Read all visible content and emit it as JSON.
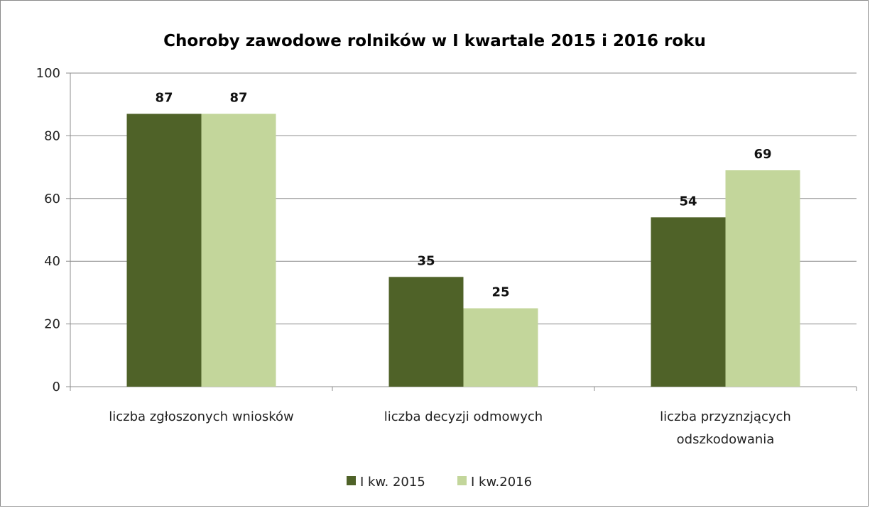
{
  "chart_data": {
    "type": "bar",
    "title": "Choroby zawodowe rolników  w I kwartale 2015 i 2016 roku",
    "xlabel": "",
    "ylabel": "",
    "ylim": [
      0,
      100
    ],
    "yticks": [
      0,
      20,
      40,
      60,
      80,
      100
    ],
    "categories": [
      [
        "liczba zgłoszonych wniosków"
      ],
      [
        "liczba decyzji odmowych"
      ],
      [
        "liczba przyznzjących",
        "odszkodowania"
      ]
    ],
    "series": [
      {
        "name": "I kw. 2015",
        "color": "#4f6228",
        "values": [
          87,
          35,
          54
        ]
      },
      {
        "name": "I kw.2016",
        "color": "#c3d69b",
        "values": [
          87,
          25,
          69
        ]
      }
    ],
    "data_labels": true,
    "grid": "horizontal",
    "legend_position": "bottom"
  }
}
